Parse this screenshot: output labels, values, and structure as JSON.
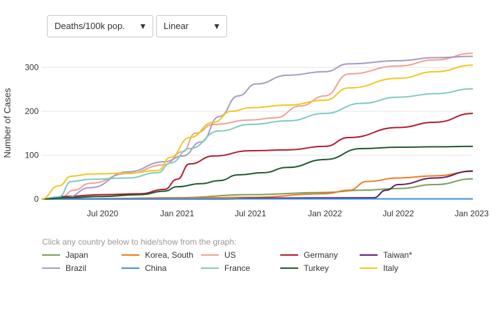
{
  "controls": {
    "metric_value": "Deaths/100k pop.",
    "scale_value": "Linear"
  },
  "legend_hint": "Click any country below to hide/show from the graph:",
  "chart_data": {
    "type": "line",
    "ylabel": "Number of Cases",
    "xlabel": "",
    "x_ticks": [
      "Jul 2020",
      "Jan 2021",
      "Jul 2021",
      "Jan 2022",
      "Jul 2022",
      "Jan 2023"
    ],
    "x_range": [
      "2020-02-01",
      "2023-01-01"
    ],
    "y_ticks": [
      0,
      100,
      200,
      300
    ],
    "ylim": [
      0,
      340
    ],
    "grid": "horizontal",
    "legend_position": "bottom",
    "series": [
      {
        "name": "Japan",
        "color": "#7aa05a",
        "points": [
          [
            "2020-02-01",
            0
          ],
          [
            "2020-07-01",
            1
          ],
          [
            "2021-01-01",
            3
          ],
          [
            "2021-07-01",
            10
          ],
          [
            "2022-01-01",
            15
          ],
          [
            "2022-04-01",
            20
          ],
          [
            "2022-07-01",
            24
          ],
          [
            "2022-10-01",
            33
          ],
          [
            "2023-01-01",
            46
          ]
        ]
      },
      {
        "name": "Korea, South",
        "color": "#f07c1e",
        "points": [
          [
            "2020-02-01",
            0
          ],
          [
            "2021-01-01",
            2
          ],
          [
            "2021-07-01",
            4
          ],
          [
            "2022-01-01",
            12
          ],
          [
            "2022-03-01",
            20
          ],
          [
            "2022-04-15",
            40
          ],
          [
            "2022-07-01",
            48
          ],
          [
            "2022-10-01",
            53
          ],
          [
            "2023-01-01",
            63
          ]
        ]
      },
      {
        "name": "US",
        "color": "#f0a090",
        "points": [
          [
            "2020-02-01",
            0
          ],
          [
            "2020-03-20",
            2
          ],
          [
            "2020-04-20",
            20
          ],
          [
            "2020-06-01",
            36
          ],
          [
            "2020-09-01",
            58
          ],
          [
            "2020-12-01",
            78
          ],
          [
            "2021-01-15",
            108
          ],
          [
            "2021-02-15",
            150
          ],
          [
            "2021-04-01",
            170
          ],
          [
            "2021-07-01",
            180
          ],
          [
            "2021-09-01",
            185
          ],
          [
            "2021-11-01",
            212
          ],
          [
            "2022-01-01",
            235
          ],
          [
            "2022-03-01",
            285
          ],
          [
            "2022-07-01",
            303
          ],
          [
            "2022-10-01",
            317
          ],
          [
            "2023-01-01",
            332
          ]
        ]
      },
      {
        "name": "Germany",
        "color": "#b01c2e",
        "points": [
          [
            "2020-02-01",
            0
          ],
          [
            "2020-04-01",
            6
          ],
          [
            "2020-07-01",
            10
          ],
          [
            "2020-10-01",
            12
          ],
          [
            "2020-12-01",
            22
          ],
          [
            "2021-01-01",
            45
          ],
          [
            "2021-02-01",
            80
          ],
          [
            "2021-04-01",
            98
          ],
          [
            "2021-07-01",
            110
          ],
          [
            "2021-10-01",
            112
          ],
          [
            "2022-01-01",
            120
          ],
          [
            "2022-03-01",
            140
          ],
          [
            "2022-07-01",
            163
          ],
          [
            "2022-10-01",
            175
          ],
          [
            "2023-01-01",
            195
          ]
        ]
      },
      {
        "name": "Taiwan*",
        "color": "#5e1e6a",
        "points": [
          [
            "2020-02-01",
            0
          ],
          [
            "2021-05-01",
            0
          ],
          [
            "2021-07-01",
            2
          ],
          [
            "2022-05-01",
            3
          ],
          [
            "2022-06-01",
            20
          ],
          [
            "2022-07-01",
            33
          ],
          [
            "2022-10-01",
            48
          ],
          [
            "2023-01-01",
            64
          ]
        ]
      },
      {
        "name": "Brazil",
        "color": "#a898c8",
        "points": [
          [
            "2020-02-01",
            0
          ],
          [
            "2020-04-01",
            3
          ],
          [
            "2020-06-01",
            26
          ],
          [
            "2020-09-01",
            62
          ],
          [
            "2020-12-01",
            85
          ],
          [
            "2021-01-15",
            98
          ],
          [
            "2021-03-01",
            130
          ],
          [
            "2021-04-15",
            188
          ],
          [
            "2021-06-01",
            235
          ],
          [
            "2021-07-15",
            262
          ],
          [
            "2021-10-01",
            282
          ],
          [
            "2022-01-01",
            290
          ],
          [
            "2022-03-01",
            308
          ],
          [
            "2022-07-01",
            315
          ],
          [
            "2022-10-01",
            322
          ],
          [
            "2023-01-01",
            325
          ]
        ]
      },
      {
        "name": "China",
        "color": "#3f8fe0",
        "points": [
          [
            "2020-02-01",
            0
          ],
          [
            "2020-03-01",
            0.3
          ],
          [
            "2023-01-01",
            0.4
          ]
        ]
      },
      {
        "name": "France",
        "color": "#7ecac0",
        "points": [
          [
            "2020-02-01",
            0
          ],
          [
            "2020-03-15",
            5
          ],
          [
            "2020-04-15",
            40
          ],
          [
            "2020-06-01",
            45
          ],
          [
            "2020-09-01",
            48
          ],
          [
            "2020-11-15",
            60
          ],
          [
            "2020-12-15",
            82
          ],
          [
            "2021-02-01",
            115
          ],
          [
            "2021-04-15",
            155
          ],
          [
            "2021-07-01",
            170
          ],
          [
            "2021-10-01",
            178
          ],
          [
            "2022-01-01",
            195
          ],
          [
            "2022-04-01",
            218
          ],
          [
            "2022-07-01",
            232
          ],
          [
            "2022-10-01",
            240
          ],
          [
            "2023-01-01",
            251
          ]
        ]
      },
      {
        "name": "Turkey",
        "color": "#1e5a30",
        "points": [
          [
            "2020-02-01",
            0
          ],
          [
            "2020-04-01",
            3
          ],
          [
            "2020-07-01",
            6
          ],
          [
            "2020-10-01",
            10
          ],
          [
            "2020-12-01",
            18
          ],
          [
            "2021-01-01",
            28
          ],
          [
            "2021-03-01",
            35
          ],
          [
            "2021-04-15",
            42
          ],
          [
            "2021-06-01",
            55
          ],
          [
            "2021-08-01",
            60
          ],
          [
            "2021-10-01",
            72
          ],
          [
            "2022-01-01",
            90
          ],
          [
            "2022-04-01",
            115
          ],
          [
            "2022-07-01",
            118
          ],
          [
            "2022-10-01",
            119
          ],
          [
            "2023-01-01",
            120
          ]
        ]
      },
      {
        "name": "Italy",
        "color": "#f0c81e",
        "points": [
          [
            "2020-02-01",
            0
          ],
          [
            "2020-03-15",
            30
          ],
          [
            "2020-04-15",
            52
          ],
          [
            "2020-06-01",
            57
          ],
          [
            "2020-09-01",
            59
          ],
          [
            "2020-11-15",
            65
          ],
          [
            "2020-12-15",
            95
          ],
          [
            "2021-02-01",
            140
          ],
          [
            "2021-04-01",
            175
          ],
          [
            "2021-05-15",
            200
          ],
          [
            "2021-07-01",
            208
          ],
          [
            "2021-10-01",
            214
          ],
          [
            "2022-01-01",
            225
          ],
          [
            "2022-03-01",
            253
          ],
          [
            "2022-07-01",
            275
          ],
          [
            "2022-10-01",
            290
          ],
          [
            "2023-01-01",
            305
          ]
        ]
      }
    ]
  }
}
